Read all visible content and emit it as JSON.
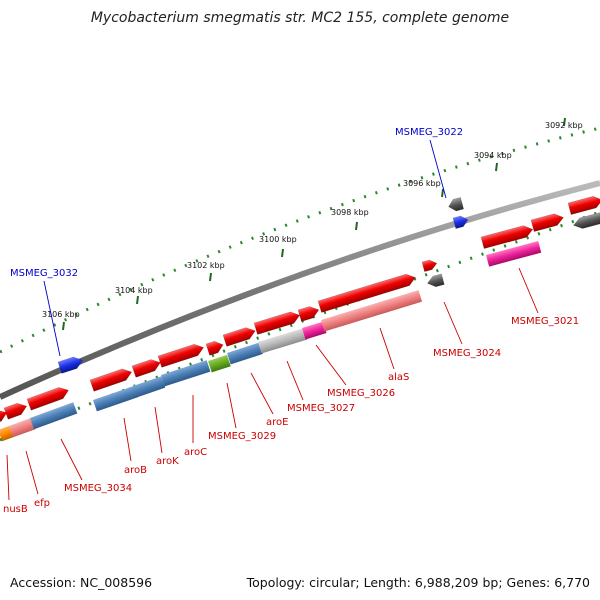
{
  "title": "Mycobacterium smegmatis str. MC2 155, complete genome",
  "accession": "Accession: NC_008596",
  "topology": "Topology: circular; Length: 6,988,209 bp; Genes: 6,770",
  "colors": {
    "forward_cds": "#ee0000",
    "reverse_cds_blue": "#1a2ee6",
    "reverse_cds_grey": "#555555",
    "function_blue": "#4a7eb5",
    "function_salmon": "#f08080",
    "function_pink": "#ee2299",
    "function_grey": "#b8b8b8",
    "function_green": "#66aa22",
    "function_orange": "#ff8800",
    "backbone": "#888888",
    "tick": "#226622",
    "label_red": "#cc0000",
    "label_blue": "#0000cc"
  },
  "ticks": [
    {
      "label": "3092 kbp"
    },
    {
      "label": "3094 kbp"
    },
    {
      "label": "3096 kbp"
    },
    {
      "label": "3098 kbp"
    },
    {
      "label": "3100 kbp"
    },
    {
      "label": "3102 kbp"
    },
    {
      "label": "3104 kbp"
    },
    {
      "label": "3106 kbp"
    }
  ],
  "gene_labels": [
    {
      "text": "MSMEG_3022",
      "color": "blue"
    },
    {
      "text": "MSMEG_3032",
      "color": "blue"
    },
    {
      "text": "MSMEG_3021",
      "color": "red"
    },
    {
      "text": "MSMEG_3024",
      "color": "red"
    },
    {
      "text": "alaS",
      "color": "red"
    },
    {
      "text": "MSMEG_3026",
      "color": "red"
    },
    {
      "text": "MSMEG_3027",
      "color": "red"
    },
    {
      "text": "aroE",
      "color": "red"
    },
    {
      "text": "MSMEG_3029",
      "color": "red"
    },
    {
      "text": "aroC",
      "color": "red"
    },
    {
      "text": "aroK",
      "color": "red"
    },
    {
      "text": "aroB",
      "color": "red"
    },
    {
      "text": "MSMEG_3034",
      "color": "red"
    },
    {
      "text": "efp",
      "color": "red"
    },
    {
      "text": "nusB",
      "color": "red"
    }
  ]
}
